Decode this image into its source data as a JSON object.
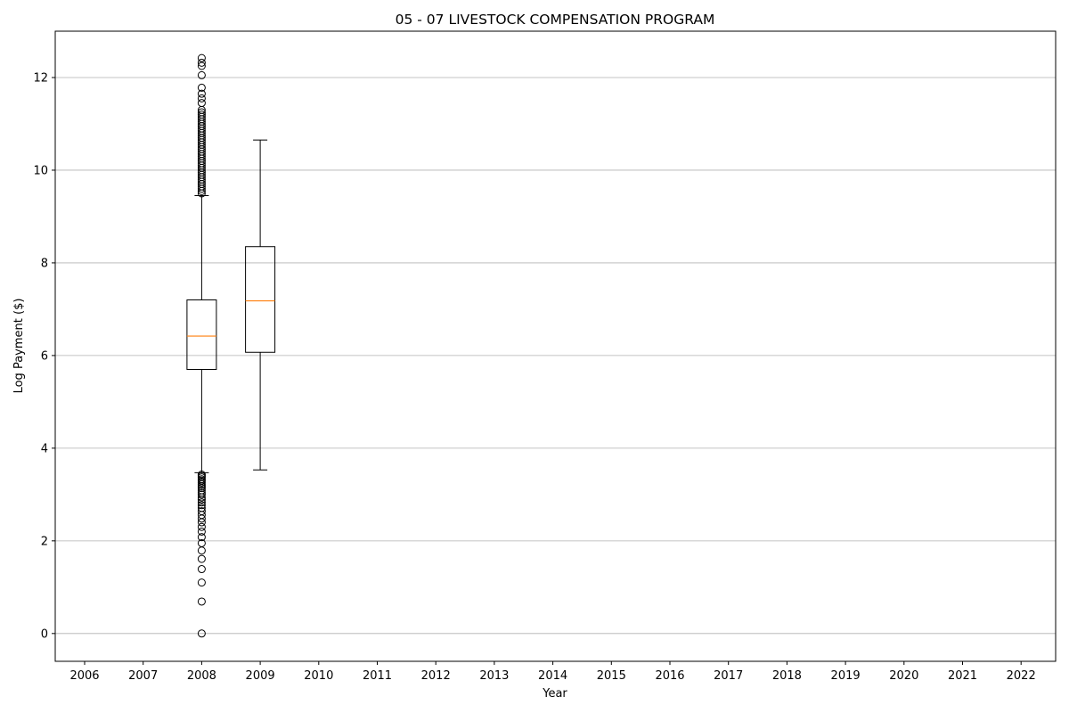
{
  "chart_data": {
    "type": "box",
    "title": "05 - 07 LIVESTOCK COMPENSATION PROGRAM",
    "xlabel": "Year",
    "ylabel": "Log Payment ($)",
    "categories": [
      "2006",
      "2007",
      "2008",
      "2009",
      "2010",
      "2011",
      "2012",
      "2013",
      "2014",
      "2015",
      "2016",
      "2017",
      "2018",
      "2019",
      "2020",
      "2021",
      "2022"
    ],
    "y_ticks": [
      0,
      2,
      4,
      6,
      8,
      10,
      12
    ],
    "ylim": [
      -0.6,
      13.0
    ],
    "grid": "y",
    "colors": {
      "box": "#000000",
      "median": "#ff7f0e",
      "grid": "#b0b0b0"
    },
    "boxes": [
      {
        "category": "2008",
        "whisker_low": 3.47,
        "q1": 5.7,
        "median": 6.42,
        "q3": 7.2,
        "whisker_high": 9.45,
        "outliers": [
          0.0,
          0.69,
          1.1,
          1.39,
          1.61,
          1.79,
          1.95,
          2.08,
          2.2,
          2.3,
          2.4,
          2.48,
          2.56,
          2.64,
          2.71,
          2.77,
          2.83,
          2.89,
          2.94,
          3.0,
          3.04,
          3.09,
          3.14,
          3.18,
          3.22,
          3.26,
          3.3,
          3.33,
          3.37,
          3.4,
          3.43,
          9.5,
          9.55,
          9.6,
          9.65,
          9.7,
          9.75,
          9.8,
          9.85,
          9.9,
          9.95,
          10.0,
          10.05,
          10.1,
          10.15,
          10.2,
          10.25,
          10.3,
          10.35,
          10.4,
          10.45,
          10.5,
          10.55,
          10.6,
          10.65,
          10.7,
          10.75,
          10.8,
          10.85,
          10.9,
          10.95,
          11.0,
          11.05,
          11.1,
          11.15,
          11.2,
          11.25,
          11.3,
          11.45,
          11.55,
          11.65,
          11.78,
          12.05,
          12.25,
          12.32,
          12.42
        ]
      },
      {
        "category": "2009",
        "whisker_low": 3.53,
        "q1": 6.07,
        "median": 7.18,
        "q3": 8.35,
        "whisker_high": 10.65,
        "outliers": []
      }
    ]
  }
}
